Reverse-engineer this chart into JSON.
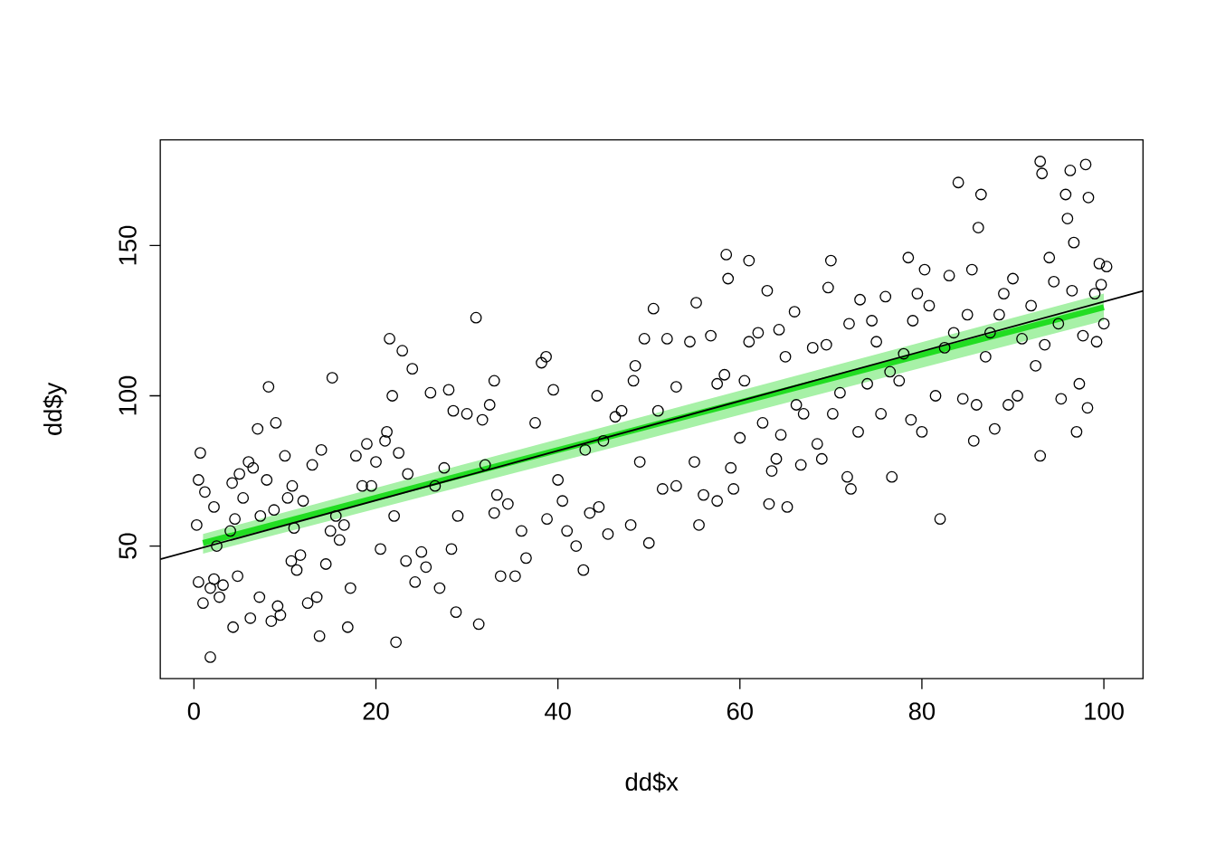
{
  "chart_data": {
    "type": "scatter",
    "xlabel": "dd$x",
    "ylabel": "dd$y",
    "xlim": [
      -3.7,
      104.3
    ],
    "ylim": [
      5.9,
      185.2
    ],
    "xticks": [
      0,
      20,
      40,
      60,
      80,
      100
    ],
    "yticks": [
      50,
      100,
      150
    ],
    "grid": false,
    "marker": "circle",
    "series": [
      {
        "color": "#000000",
        "x": [
          0.3,
          0.5,
          0.5,
          0.7,
          1,
          1.2,
          1.8,
          1.8,
          2.2,
          2.2,
          2.5,
          2.8,
          3.2,
          4,
          4.2,
          4.3,
          4.5,
          4.8,
          5,
          5.4,
          6,
          6.2,
          6.5,
          7,
          7.2,
          7.3,
          8,
          8.2,
          8.5,
          8.8,
          9,
          9.2,
          9.5,
          10,
          10.3,
          10.7,
          10.8,
          11,
          11.3,
          11.7,
          12,
          12.5,
          13,
          13.5,
          13.8,
          14,
          14.5,
          15,
          15.2,
          15.6,
          16,
          16.5,
          16.9,
          17.2,
          17.8,
          18.5,
          19,
          19.5,
          20,
          20.5,
          21,
          21.2,
          21.5,
          21.8,
          22,
          22.2,
          22.5,
          22.9,
          23.3,
          23.5,
          24,
          24.3,
          25,
          25.5,
          26,
          26.5,
          27,
          27.5,
          28,
          28.3,
          28.5,
          28.8,
          29,
          30,
          31,
          31.3,
          31.7,
          32,
          32.5,
          33,
          33,
          33.3,
          33.7,
          34.5,
          35.3,
          36,
          36.5,
          37.5,
          38.2,
          38.7,
          38.8,
          39.5,
          40,
          40.5,
          41,
          42,
          42.8,
          43,
          43.5,
          44.3,
          44.5,
          45,
          45.5,
          46.3,
          47,
          48,
          48.3,
          48.5,
          49,
          49.5,
          50,
          50.5,
          51,
          51.5,
          52,
          53,
          53,
          54.5,
          55,
          55.2,
          55.5,
          56,
          56.8,
          57.5,
          57.5,
          58.3,
          58.5,
          58.7,
          59,
          59.3,
          60,
          60.5,
          61,
          61,
          62,
          62.5,
          63,
          63.2,
          63.5,
          64,
          64.3,
          64.5,
          65,
          65.2,
          66,
          66.2,
          66.7,
          67,
          68,
          68.5,
          69,
          69.5,
          69.7,
          70,
          70.2,
          71,
          71.8,
          72,
          72.2,
          73,
          73.2,
          74,
          74.5,
          75,
          75.5,
          76,
          76.5,
          76.7,
          77.5,
          78,
          78.5,
          78.8,
          79,
          79.5,
          80,
          80.3,
          80.8,
          81.5,
          82,
          82.5,
          83,
          83.5,
          84,
          84.5,
          85,
          85.5,
          85.7,
          86,
          86.2,
          86.5,
          87,
          87.5,
          88,
          88.5,
          89,
          89.5,
          90,
          90.5,
          91,
          92,
          92.5,
          93,
          93,
          93.2,
          93.5,
          94,
          94.5,
          95,
          95.3,
          95.8,
          96,
          96.3,
          96.5,
          96.7,
          97,
          97.3,
          97.7,
          98,
          98.2,
          98.3,
          99,
          99.2,
          99.5,
          99.7,
          100,
          100.3
        ],
        "values": [
          57,
          72,
          38,
          81,
          31,
          68,
          13,
          36,
          63,
          39,
          50,
          33,
          37,
          55,
          71,
          23,
          59,
          40,
          74,
          66,
          78,
          26,
          76,
          89,
          33,
          60,
          72,
          103,
          25,
          62,
          91,
          30,
          27,
          80,
          66,
          45,
          70,
          56,
          42,
          47,
          65,
          31,
          77,
          33,
          20,
          82,
          44,
          55,
          106,
          60,
          52,
          57,
          23,
          36,
          80,
          70,
          84,
          70,
          78,
          49,
          85,
          88,
          119,
          100,
          60,
          18,
          81,
          115,
          45,
          74,
          109,
          38,
          48,
          43,
          101,
          70,
          36,
          76,
          102,
          49,
          95,
          28,
          60,
          94,
          126,
          24,
          92,
          77,
          97,
          105,
          61,
          67,
          40,
          64,
          40,
          55,
          46,
          91,
          111,
          113,
          59,
          102,
          72,
          65,
          55,
          50,
          42,
          82,
          61,
          100,
          63,
          85,
          54,
          93,
          95,
          57,
          105,
          110,
          78,
          119,
          51,
          129,
          95,
          69,
          119,
          103,
          70,
          118,
          78,
          131,
          57,
          67,
          120,
          65,
          104,
          107,
          147,
          139,
          76,
          69,
          86,
          105,
          118,
          145,
          121,
          91,
          135,
          64,
          75,
          79,
          122,
          87,
          113,
          63,
          128,
          97,
          77,
          94,
          116,
          84,
          79,
          117,
          136,
          145,
          94,
          101,
          73,
          124,
          69,
          88,
          132,
          104,
          125,
          118,
          94,
          133,
          108,
          73,
          105,
          114,
          146,
          92,
          125,
          134,
          88,
          142,
          130,
          100,
          59,
          116,
          140,
          121,
          171,
          99,
          127,
          142,
          85,
          97,
          156,
          167,
          113,
          121,
          89,
          127,
          134,
          97,
          139,
          100,
          119,
          130,
          110,
          80,
          178,
          174,
          117,
          146,
          138,
          124,
          99,
          167,
          159,
          175,
          135,
          151,
          88,
          104,
          120,
          177,
          96,
          166,
          134,
          118,
          144,
          137,
          124,
          143
        ]
      },
      {
        "type": "line",
        "color": "#22dd22",
        "marker": "none",
        "x": [
          1,
          100
        ],
        "values": [
          51,
          129.5
        ],
        "lower": [
          47.5,
          125
        ],
        "upper": [
          54,
          134
        ]
      },
      {
        "type": "line",
        "color": "#000000",
        "marker": "none",
        "x": [
          -3.7,
          104.3
        ],
        "values": [
          45.6,
          134.9
        ]
      }
    ]
  }
}
